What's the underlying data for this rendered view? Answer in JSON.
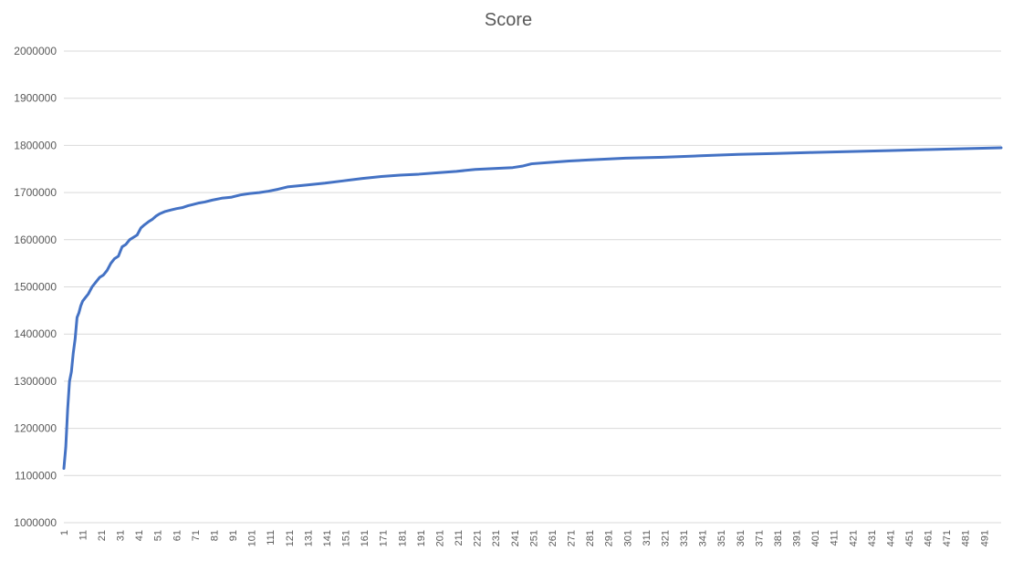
{
  "chart_data": {
    "type": "line",
    "title": "Score",
    "xlabel": "",
    "ylabel": "",
    "ylim": [
      1000000,
      2000000
    ],
    "xlim": [
      1,
      500
    ],
    "y_ticks": [
      1000000,
      1100000,
      1200000,
      1300000,
      1400000,
      1500000,
      1600000,
      1700000,
      1800000,
      1900000,
      2000000
    ],
    "y_tick_labels": [
      "1000000",
      "1100000",
      "1200000",
      "1300000",
      "1400000",
      "1500000",
      "1600000",
      "1700000",
      "1800000",
      "1900000",
      "2000000"
    ],
    "x_ticks": [
      1,
      11,
      21,
      31,
      41,
      51,
      61,
      71,
      81,
      91,
      101,
      111,
      121,
      131,
      141,
      151,
      161,
      171,
      181,
      191,
      201,
      211,
      221,
      231,
      241,
      251,
      261,
      271,
      281,
      291,
      301,
      311,
      321,
      331,
      341,
      351,
      361,
      371,
      381,
      391,
      401,
      411,
      421,
      431,
      441,
      451,
      461,
      471,
      481,
      491
    ],
    "x_tick_labels": [
      "1",
      "11",
      "21",
      "31",
      "41",
      "51",
      "61",
      "71",
      "81",
      "91",
      "101",
      "111",
      "121",
      "131",
      "141",
      "151",
      "161",
      "171",
      "181",
      "191",
      "201",
      "211",
      "221",
      "231",
      "241",
      "251",
      "261",
      "271",
      "281",
      "291",
      "301",
      "311",
      "321",
      "331",
      "341",
      "351",
      "361",
      "371",
      "381",
      "391",
      "401",
      "411",
      "421",
      "431",
      "441",
      "451",
      "461",
      "471",
      "481",
      "491"
    ],
    "grid": true,
    "legend": "none",
    "series": [
      {
        "color": "#4472c4",
        "x": [
          1,
          2,
          3,
          4,
          5,
          6,
          7,
          8,
          9,
          10,
          11,
          12,
          13,
          14,
          16,
          18,
          20,
          22,
          24,
          26,
          28,
          30,
          32,
          34,
          36,
          38,
          40,
          42,
          44,
          46,
          48,
          50,
          52,
          55,
          58,
          61,
          64,
          67,
          70,
          73,
          76,
          80,
          85,
          90,
          95,
          100,
          105,
          110,
          115,
          120,
          125,
          130,
          140,
          150,
          160,
          170,
          180,
          190,
          200,
          210,
          220,
          230,
          240,
          245,
          250,
          260,
          270,
          280,
          290,
          300,
          320,
          340,
          360,
          380,
          400,
          420,
          440,
          460,
          480,
          500
        ],
        "y": [
          1115000,
          1160000,
          1240000,
          1300000,
          1320000,
          1360000,
          1390000,
          1435000,
          1445000,
          1460000,
          1470000,
          1475000,
          1480000,
          1485000,
          1500000,
          1510000,
          1520000,
          1525000,
          1535000,
          1550000,
          1560000,
          1565000,
          1585000,
          1590000,
          1600000,
          1605000,
          1610000,
          1625000,
          1632000,
          1638000,
          1643000,
          1650000,
          1655000,
          1660000,
          1663000,
          1666000,
          1668000,
          1672000,
          1675000,
          1678000,
          1680000,
          1684000,
          1688000,
          1690000,
          1695000,
          1698000,
          1700000,
          1703000,
          1707000,
          1712000,
          1714000,
          1716000,
          1720000,
          1725000,
          1730000,
          1734000,
          1737000,
          1739000,
          1742000,
          1745000,
          1749000,
          1751000,
          1753000,
          1756000,
          1761000,
          1764000,
          1767000,
          1769000,
          1771000,
          1773000,
          1775000,
          1778000,
          1781000,
          1783000,
          1785000,
          1787000,
          1789000,
          1791000,
          1793000,
          1795000
        ]
      }
    ]
  }
}
